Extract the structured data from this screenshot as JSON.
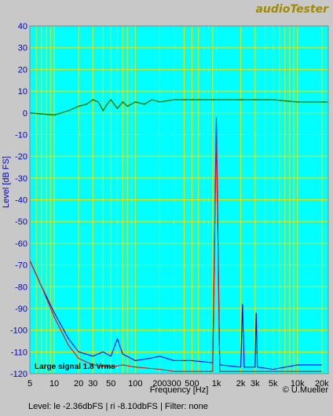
{
  "brand": "audioTester",
  "status_line": "Level:  le -2.36dbFS  |  ri -8.10dbFS | Filter: none",
  "copyright": "© U.Mueller",
  "colors": {
    "plot_bg": "#00ffff",
    "grid": "#e6e600",
    "response": "#007a00",
    "left": "#0000ff",
    "right": "#ff0000",
    "frame": "#c8c8c8"
  },
  "chart_data": {
    "type": "line",
    "xlabel": "Frequency [Hz]",
    "ylabel": "Level [dB FS]",
    "x_scale": "log",
    "xlim": [
      5,
      24000
    ],
    "ylim": [
      -120,
      40
    ],
    "yticks": [
      "40",
      "30",
      "20",
      "10",
      "0",
      "-10",
      "-20",
      "-30",
      "-40",
      "-50",
      "-60",
      "-70",
      "-80",
      "-90",
      "-100",
      "-110",
      "-120"
    ],
    "xticks": [
      {
        "v": 5,
        "t": "5"
      },
      {
        "v": 10,
        "t": "10"
      },
      {
        "v": 20,
        "t": "20"
      },
      {
        "v": 30,
        "t": "30"
      },
      {
        "v": 50,
        "t": "50"
      },
      {
        "v": 100,
        "t": "100"
      },
      {
        "v": 200,
        "t": "200"
      },
      {
        "v": 300,
        "t": "300"
      },
      {
        "v": 500,
        "t": "500"
      },
      {
        "v": 1000,
        "t": "1k"
      },
      {
        "v": 2000,
        "t": "2k"
      },
      {
        "v": 3000,
        "t": "3k"
      },
      {
        "v": 5000,
        "t": "5k"
      },
      {
        "v": 10000,
        "t": "10k"
      },
      {
        "v": 20000,
        "t": "20k"
      }
    ],
    "annotation": "Large signal 1.8 Vrms",
    "series": [
      {
        "color": "#007a00",
        "points": [
          [
            5,
            0
          ],
          [
            10,
            -1
          ],
          [
            15,
            1
          ],
          [
            20,
            3
          ],
          [
            25,
            4
          ],
          [
            30,
            6
          ],
          [
            35,
            5
          ],
          [
            40,
            1
          ],
          [
            45,
            4
          ],
          [
            50,
            6
          ],
          [
            60,
            2
          ],
          [
            70,
            5
          ],
          [
            80,
            3
          ],
          [
            100,
            5
          ],
          [
            130,
            4
          ],
          [
            160,
            6
          ],
          [
            200,
            5
          ],
          [
            300,
            6
          ],
          [
            500,
            6
          ],
          [
            1000,
            6
          ],
          [
            2000,
            6
          ],
          [
            5000,
            6
          ],
          [
            10000,
            5
          ],
          [
            20000,
            5
          ],
          [
            24000,
            5
          ]
        ]
      },
      {
        "color": "#0000ff",
        "points": [
          [
            5,
            -68
          ],
          [
            7,
            -80
          ],
          [
            10,
            -92
          ],
          [
            15,
            -104
          ],
          [
            20,
            -110
          ],
          [
            30,
            -112
          ],
          [
            40,
            -110
          ],
          [
            50,
            -112
          ],
          [
            60,
            -104
          ],
          [
            70,
            -111
          ],
          [
            100,
            -114
          ],
          [
            150,
            -113
          ],
          [
            200,
            -112
          ],
          [
            300,
            -114
          ],
          [
            500,
            -114
          ],
          [
            900,
            -115
          ],
          [
            1000,
            -2
          ],
          [
            1100,
            -116
          ],
          [
            2000,
            -117
          ],
          [
            2100,
            -88
          ],
          [
            2200,
            -117
          ],
          [
            3000,
            -117
          ],
          [
            3100,
            -92
          ],
          [
            3200,
            -117
          ],
          [
            5000,
            -118
          ],
          [
            10000,
            -116
          ],
          [
            20000,
            -116
          ]
        ]
      },
      {
        "color": "#ff0000",
        "points": [
          [
            5,
            -68
          ],
          [
            7,
            -80
          ],
          [
            10,
            -94
          ],
          [
            15,
            -107
          ],
          [
            20,
            -113
          ],
          [
            30,
            -116
          ],
          [
            50,
            -117
          ],
          [
            70,
            -116
          ],
          [
            100,
            -117
          ],
          [
            200,
            -118
          ],
          [
            300,
            -119
          ],
          [
            500,
            -119
          ],
          [
            900,
            -119
          ],
          [
            1000,
            -8
          ],
          [
            1100,
            -119
          ],
          [
            2000,
            -119
          ],
          [
            3000,
            -119
          ],
          [
            5000,
            -119
          ],
          [
            10000,
            -119
          ],
          [
            20000,
            -119
          ]
        ]
      }
    ]
  }
}
